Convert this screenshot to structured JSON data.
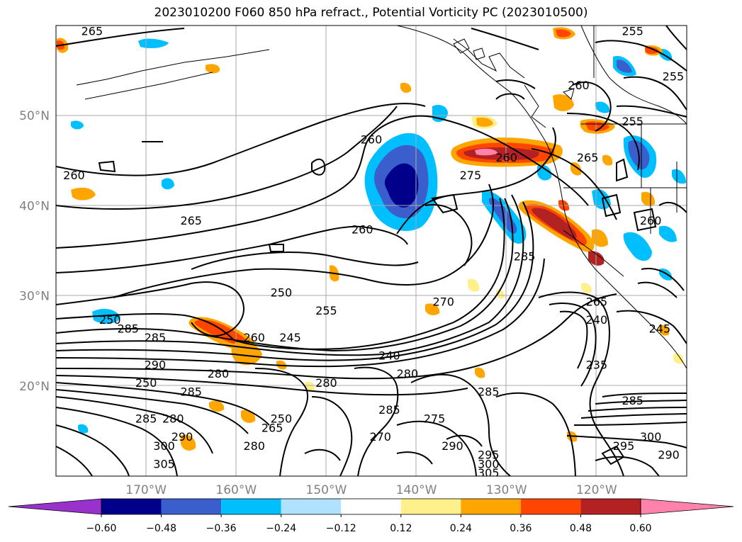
{
  "title": "2023010200 F060 850 hPa refract., Potential Vorticity PC (2023010500)",
  "map": {
    "lon_range": [
      -180,
      -110
    ],
    "lat_range": [
      10,
      60
    ],
    "lat_ticks": [
      {
        "lat": 20,
        "label": "20°N"
      },
      {
        "lat": 30,
        "label": "30°N"
      },
      {
        "lat": 40,
        "label": "40°N"
      },
      {
        "lat": 50,
        "label": "50°N"
      }
    ],
    "lon_ticks": [
      {
        "lon": -170,
        "label": "170°W"
      },
      {
        "lon": -160,
        "label": "160°W"
      },
      {
        "lon": -150,
        "label": "150°W"
      },
      {
        "lon": -140,
        "label": "140°W"
      },
      {
        "lon": -130,
        "label": "130°W"
      },
      {
        "lon": -120,
        "label": "120°W"
      }
    ],
    "grid": true,
    "contour_labels": [
      {
        "text": "265",
        "lon": -176,
        "lat": 59
      },
      {
        "text": "260",
        "lon": -178,
        "lat": 43
      },
      {
        "text": "265",
        "lon": -165,
        "lat": 38
      },
      {
        "text": "260",
        "lon": -145,
        "lat": 47
      },
      {
        "text": "260",
        "lon": -146,
        "lat": 37
      },
      {
        "text": "275",
        "lon": -134,
        "lat": 43
      },
      {
        "text": "260",
        "lon": -130,
        "lat": 45
      },
      {
        "text": "265",
        "lon": -121,
        "lat": 45
      },
      {
        "text": "260",
        "lon": -122,
        "lat": 53
      },
      {
        "text": "255",
        "lon": -116,
        "lat": 59
      },
      {
        "text": "255",
        "lon": -116,
        "lat": 49
      },
      {
        "text": "255",
        "lon": -111.5,
        "lat": 54
      },
      {
        "text": "260",
        "lon": -114,
        "lat": 38
      },
      {
        "text": "285",
        "lon": -128,
        "lat": 34
      },
      {
        "text": "250",
        "lon": -155,
        "lat": 30
      },
      {
        "text": "255",
        "lon": -150,
        "lat": 28
      },
      {
        "text": "285",
        "lon": -172,
        "lat": 26
      },
      {
        "text": "285",
        "lon": -169,
        "lat": 25
      },
      {
        "text": "250",
        "lon": -174,
        "lat": 27
      },
      {
        "text": "245",
        "lon": -154,
        "lat": 25
      },
      {
        "text": "260",
        "lon": -158,
        "lat": 25
      },
      {
        "text": "240",
        "lon": -143,
        "lat": 23
      },
      {
        "text": "270",
        "lon": -137,
        "lat": 29
      },
      {
        "text": "265",
        "lon": -120,
        "lat": 29
      },
      {
        "text": "240",
        "lon": -120,
        "lat": 27
      },
      {
        "text": "245",
        "lon": -113,
        "lat": 26
      },
      {
        "text": "235",
        "lon": -120,
        "lat": 22
      },
      {
        "text": "290",
        "lon": -169,
        "lat": 22
      },
      {
        "text": "280",
        "lon": -162,
        "lat": 21
      },
      {
        "text": "280",
        "lon": -150,
        "lat": 20
      },
      {
        "text": "280",
        "lon": -141,
        "lat": 21
      },
      {
        "text": "285",
        "lon": -165,
        "lat": 19
      },
      {
        "text": "250",
        "lon": -170,
        "lat": 20
      },
      {
        "text": "285",
        "lon": -143,
        "lat": 17
      },
      {
        "text": "275",
        "lon": -138,
        "lat": 16
      },
      {
        "text": "285",
        "lon": -132,
        "lat": 19
      },
      {
        "text": "270",
        "lon": -144,
        "lat": 14
      },
      {
        "text": "280",
        "lon": -167,
        "lat": 16
      },
      {
        "text": "290",
        "lon": -166,
        "lat": 14
      },
      {
        "text": "285",
        "lon": -170,
        "lat": 16
      },
      {
        "text": "280",
        "lon": -158,
        "lat": 13
      },
      {
        "text": "265",
        "lon": -156,
        "lat": 15
      },
      {
        "text": "250",
        "lon": -155,
        "lat": 16
      },
      {
        "text": "300",
        "lon": -168,
        "lat": 13
      },
      {
        "text": "305",
        "lon": -168,
        "lat": 11
      },
      {
        "text": "290",
        "lon": -136,
        "lat": 13
      },
      {
        "text": "295",
        "lon": -132,
        "lat": 12
      },
      {
        "text": "300",
        "lon": -132,
        "lat": 11
      },
      {
        "text": "305",
        "lon": -132,
        "lat": 10
      },
      {
        "text": "295",
        "lon": -117,
        "lat": 13
      },
      {
        "text": "300",
        "lon": -114,
        "lat": 14
      },
      {
        "text": "290",
        "lon": -112,
        "lat": 12
      },
      {
        "text": "285",
        "lon": -116,
        "lat": 18
      }
    ]
  },
  "colorbar": {
    "colors": [
      "#9932cc",
      "#00008b",
      "#3a5fcd",
      "#00bfff",
      "#b0e2ff",
      "#ffffff",
      "#fff08c",
      "#ffa500",
      "#ff4500",
      "#b22222",
      "#ff82ab"
    ],
    "labels": [
      "−0.60",
      "−0.48",
      "−0.36",
      "−0.24",
      "−0.12",
      "0.12",
      "0.24",
      "0.36",
      "0.48",
      "0.60"
    ]
  }
}
